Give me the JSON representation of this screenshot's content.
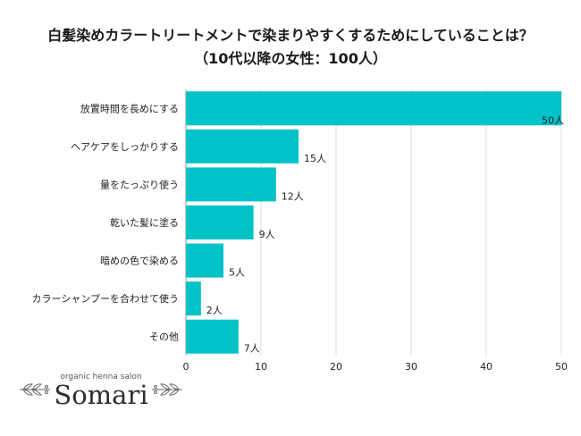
{
  "title": {
    "line1": "白髪染めカラートリートメントで染まりやすくするためにしていることは？",
    "line2": "（10代以降の女性：100人）"
  },
  "logo": {
    "tagline": "organic henna salon",
    "name": "Somari"
  },
  "colors": {
    "bar": "#00c2c7",
    "grid": "#dddddd",
    "axis": "#999999"
  },
  "chart_data": {
    "type": "bar",
    "orientation": "horizontal",
    "unit": "人",
    "categories": [
      "放置時間を長めにする",
      "ヘアケアをしっかりする",
      "量をたっぷり使う",
      "乾いた髪に塗る",
      "暗めの色で染める",
      "カラーシャンプーを合わせて使う",
      "その他"
    ],
    "values": [
      50,
      15,
      12,
      9,
      5,
      2,
      7
    ],
    "value_labels": [
      "50人",
      "15人",
      "12人",
      "9人",
      "5人",
      "2人",
      "7人"
    ],
    "xlim": [
      0,
      50
    ],
    "xticks": [
      0,
      10,
      20,
      30,
      40,
      50
    ],
    "grid": true
  }
}
